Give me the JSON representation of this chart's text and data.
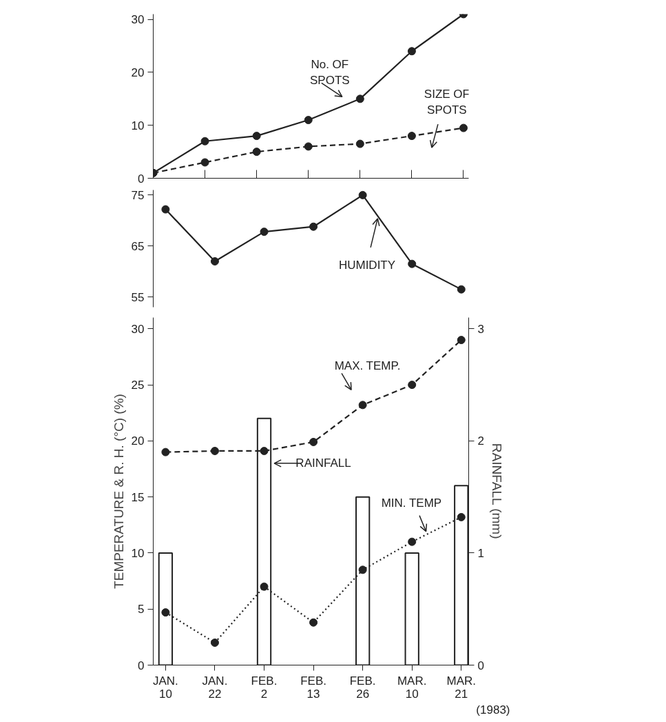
{
  "chart_data": [
    {
      "type": "line",
      "categories": [
        null,
        null,
        null,
        null,
        null,
        null,
        null
      ],
      "ylim": [
        0,
        31
      ],
      "yticks": [
        0,
        10,
        20,
        30
      ],
      "marker": "circle",
      "grid": false,
      "tick_labels": "y",
      "series": [
        {
          "name": "No. OF SPOTS",
          "color": "#222222",
          "line_style": "solid",
          "values": [
            1,
            7,
            8,
            11,
            15,
            24,
            31
          ]
        },
        {
          "name": "SIZE OF SPOTS",
          "color": "#222222",
          "line_style": "dashed",
          "values": [
            1,
            3,
            5,
            6,
            6.5,
            8,
            9.5
          ]
        }
      ]
    },
    {
      "type": "line",
      "categories": [
        null,
        null,
        null,
        null,
        null,
        null,
        null
      ],
      "ylim": [
        53,
        76
      ],
      "yticks": [
        55,
        65,
        75
      ],
      "marker": "circle",
      "grid": false,
      "tick_labels": "y",
      "series": [
        {
          "name": "HUMIDITY",
          "color": "#222222",
          "line_style": "solid",
          "values": [
            72.2,
            62,
            67.8,
            68.8,
            75,
            61.5,
            56.5
          ]
        }
      ]
    },
    {
      "type": "line",
      "categories": [
        "JAN. 10",
        "JAN. 22",
        "FEB. 2",
        "FEB. 13",
        "FEB. 26",
        "MAR. 10",
        "MAR. 21"
      ],
      "ylim": [
        0,
        31
      ],
      "yticks": [
        0,
        5,
        10,
        15,
        20,
        25,
        30
      ],
      "y2lim": [
        0,
        3.1
      ],
      "y2ticks": [
        0,
        1,
        2,
        3
      ],
      "ylabel": "TEMPERATURE & R. H. (°C) (%)",
      "y2label": "RAINFALL (mm)",
      "marker": "circle",
      "grid": false,
      "annotations": [
        "(1983)"
      ],
      "series": [
        {
          "name": "RAINFALL",
          "type": "bar",
          "axis": "y2",
          "color": "#ffffff",
          "values": [
            1.0,
            null,
            2.2,
            null,
            1.5,
            1.0,
            1.6
          ]
        },
        {
          "name": "MAX. TEMP.",
          "color": "#222222",
          "line_style": "dashed",
          "values": [
            19,
            19.1,
            19.1,
            19.9,
            23.2,
            25,
            29
          ]
        },
        {
          "name": "MIN. TEMP",
          "color": "#222222",
          "line_style": "dotted",
          "values": [
            4.7,
            2,
            7,
            3.8,
            8.5,
            11,
            13.2
          ]
        }
      ]
    }
  ]
}
